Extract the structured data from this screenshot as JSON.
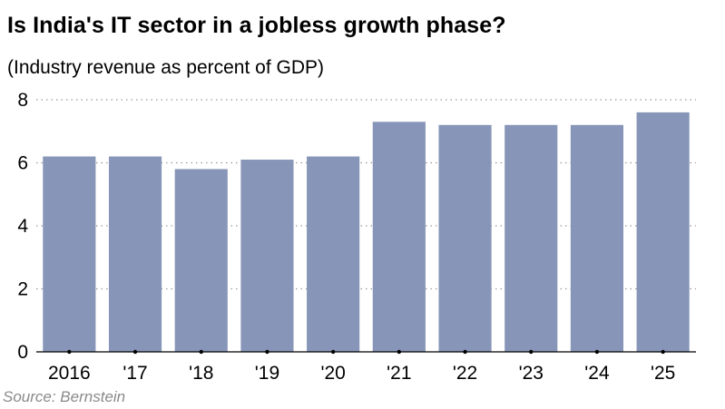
{
  "header": {
    "title": "Is India's IT sector in a jobless growth phase?",
    "subtitle": "(Industry revenue as percent of GDP)"
  },
  "footer": {
    "source": "Source: Bernstein"
  },
  "colors": {
    "bar": "#8796b8",
    "grid": "#9a9a9a",
    "axis": "#000000"
  },
  "chart_data": {
    "type": "bar",
    "categories": [
      "2016",
      "'17",
      "'18",
      "'19",
      "'20",
      "'21",
      "'22",
      "'23",
      "'24",
      "'25"
    ],
    "values": [
      6.2,
      6.2,
      5.8,
      6.1,
      6.2,
      7.3,
      7.2,
      7.2,
      7.2,
      7.6
    ],
    "title": "Is India's IT sector in a jobless growth phase?",
    "subtitle": "(Industry revenue as percent of GDP)",
    "ylim": [
      0,
      8
    ],
    "yticks": [
      0,
      2,
      4,
      6,
      8
    ],
    "grid": true,
    "grid_style": "dotted horizontal"
  }
}
